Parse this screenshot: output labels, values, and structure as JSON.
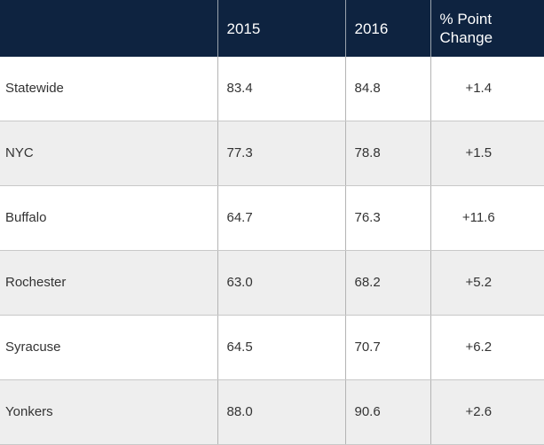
{
  "table": {
    "headers": [
      "",
      "2015",
      "2016",
      "% Point Change"
    ],
    "rows": [
      {
        "place": "Statewide",
        "y2015": "83.4",
        "y2016": "84.8",
        "change": "+1.4"
      },
      {
        "place": "NYC",
        "y2015": "77.3",
        "y2016": "78.8",
        "change": "+1.5"
      },
      {
        "place": "Buffalo",
        "y2015": "64.7",
        "y2016": "76.3",
        "change": "+11.6"
      },
      {
        "place": "Rochester",
        "y2015": "63.0",
        "y2016": "68.2",
        "change": "+5.2"
      },
      {
        "place": "Syracuse",
        "y2015": "64.5",
        "y2016": "70.7",
        "change": "+6.2"
      },
      {
        "place": "Yonkers",
        "y2015": "88.0",
        "y2016": "90.6",
        "change": "+2.6"
      }
    ]
  },
  "colors": {
    "header_background": "#0e2340",
    "header_text": "#ffffff",
    "alt_row_background": "#eeeeee"
  }
}
